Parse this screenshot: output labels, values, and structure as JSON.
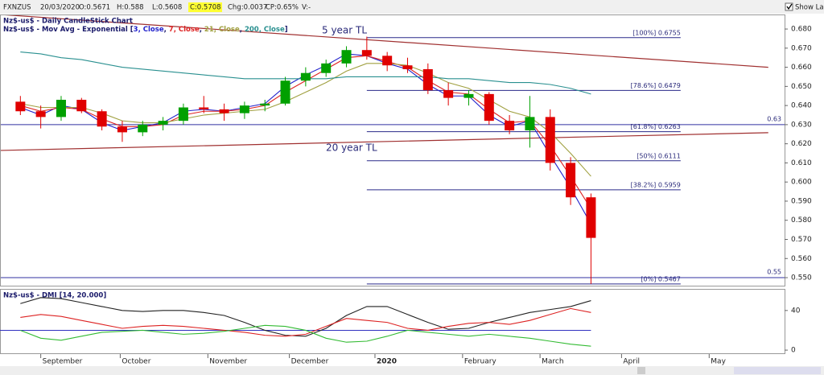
{
  "header": {
    "symbol": "FXNZUS",
    "date": "20/03/2020",
    "open": "O:0.5671",
    "high": "H:0.588",
    "low": "L:0.5608",
    "close": "C:0.5708",
    "change": "Chg:0.0037",
    "change_pct": "CP:0.65%",
    "volume": "V:-",
    "show_last": "Show Last"
  },
  "chart_data": [
    {
      "type": "candlestick",
      "title": "Nz$-us$ - Daily CandleStick Chart",
      "ma_legend": {
        "prefix": "Nz$-us$ - Mov Avg - Exponential [",
        "separator": ", ",
        "suffix": "]"
      },
      "x": [
        -1,
        0,
        1,
        2,
        3,
        4,
        5,
        6,
        7,
        8,
        9,
        10,
        11,
        12,
        13,
        14,
        15,
        16,
        17,
        18,
        19,
        20,
        21,
        22,
        23,
        24,
        25,
        26,
        27
      ],
      "open": [
        0.642,
        0.637,
        0.634,
        0.643,
        0.637,
        0.629,
        0.626,
        0.63,
        0.632,
        0.639,
        0.638,
        0.636,
        0.64,
        0.641,
        0.653,
        0.657,
        0.662,
        0.669,
        0.666,
        0.661,
        0.659,
        0.648,
        0.644,
        0.646,
        0.632,
        0.627,
        0.634,
        0.61,
        0.592
      ],
      "high": [
        0.645,
        0.64,
        0.645,
        0.644,
        0.638,
        0.632,
        0.632,
        0.634,
        0.641,
        0.645,
        0.641,
        0.642,
        0.643,
        0.655,
        0.66,
        0.664,
        0.671,
        0.676,
        0.668,
        0.665,
        0.662,
        0.652,
        0.648,
        0.647,
        0.635,
        0.645,
        0.638,
        0.613,
        0.594
      ],
      "low": [
        0.635,
        0.628,
        0.632,
        0.636,
        0.627,
        0.621,
        0.624,
        0.627,
        0.63,
        0.636,
        0.632,
        0.633,
        0.637,
        0.64,
        0.65,
        0.655,
        0.66,
        0.664,
        0.658,
        0.657,
        0.646,
        0.64,
        0.64,
        0.63,
        0.625,
        0.618,
        0.606,
        0.588,
        0.5467
      ],
      "close": [
        0.637,
        0.634,
        0.643,
        0.637,
        0.629,
        0.626,
        0.63,
        0.632,
        0.639,
        0.638,
        0.636,
        0.64,
        0.641,
        0.653,
        0.657,
        0.662,
        0.669,
        0.666,
        0.661,
        0.659,
        0.648,
        0.644,
        0.646,
        0.632,
        0.627,
        0.634,
        0.61,
        0.592,
        0.5708
      ],
      "up_color": "#00a000",
      "down_color": "#e00000",
      "series": [
        {
          "name": "3, Close",
          "color": "#2222cc",
          "values": [
            0.639,
            0.635,
            0.64,
            0.638,
            0.631,
            0.627,
            0.629,
            0.631,
            0.637,
            0.638,
            0.637,
            0.639,
            0.641,
            0.65,
            0.656,
            0.661,
            0.667,
            0.666,
            0.662,
            0.659,
            0.651,
            0.645,
            0.645,
            0.635,
            0.629,
            0.632,
            0.614,
            0.597,
            0.578
          ]
        },
        {
          "name": "7, Close",
          "color": "#dd2222",
          "values": [
            0.64,
            0.637,
            0.639,
            0.638,
            0.633,
            0.629,
            0.629,
            0.63,
            0.635,
            0.637,
            0.637,
            0.638,
            0.64,
            0.647,
            0.653,
            0.659,
            0.665,
            0.666,
            0.663,
            0.66,
            0.653,
            0.647,
            0.646,
            0.638,
            0.631,
            0.632,
            0.619,
            0.603,
            0.586
          ]
        },
        {
          "name": "21, Close",
          "color": "#a0a040",
          "values": [
            0.641,
            0.639,
            0.639,
            0.639,
            0.636,
            0.632,
            0.631,
            0.631,
            0.633,
            0.635,
            0.636,
            0.637,
            0.638,
            0.642,
            0.647,
            0.652,
            0.658,
            0.662,
            0.662,
            0.661,
            0.657,
            0.652,
            0.649,
            0.643,
            0.637,
            0.634,
            0.626,
            0.615,
            0.603
          ]
        },
        {
          "name": "200, Close",
          "color": "#2a9090",
          "values": [
            0.668,
            0.667,
            0.665,
            0.664,
            0.662,
            0.66,
            0.659,
            0.658,
            0.657,
            0.656,
            0.655,
            0.654,
            0.654,
            0.654,
            0.654,
            0.654,
            0.655,
            0.655,
            0.655,
            0.655,
            0.655,
            0.654,
            0.654,
            0.653,
            0.652,
            0.652,
            0.651,
            0.649,
            0.646
          ]
        }
      ],
      "trendlines": [
        {
          "x": [
            -2,
            35.7
          ],
          "values": [
            0.6876,
            0.66
          ],
          "color": "#a03030",
          "annotation": "5 year TL"
        },
        {
          "x": [
            -2,
            35.7
          ],
          "values": [
            0.6165,
            0.6258
          ],
          "color": "#a03030",
          "annotation": "20 year TL"
        }
      ],
      "levels": [
        {
          "value": 0.63,
          "label": "0.63"
        },
        {
          "value": 0.55,
          "label": "0.55"
        }
      ],
      "level_color": "#3030a0",
      "fib_x": [
        16,
        31.4
      ],
      "fib": [
        {
          "value": 0.6755,
          "label": "[100%] 0.6755"
        },
        {
          "value": 0.6479,
          "label": "[78.6%] 0.6479"
        },
        {
          "value": 0.6263,
          "label": "[61.8%] 0.6263"
        },
        {
          "value": 0.6111,
          "label": "[50%] 0.6111"
        },
        {
          "value": 0.5959,
          "label": "[38.2%] 0.5959"
        },
        {
          "value": 0.5467,
          "label": "[0%] 0.5467"
        }
      ],
      "xlim": [
        -2,
        36.5
      ],
      "xticks": [
        {
          "value": 0,
          "label": "September"
        },
        {
          "value": 3.9,
          "label": "October"
        },
        {
          "value": 8.2,
          "label": "November"
        },
        {
          "value": 12.2,
          "label": "December"
        },
        {
          "value": 16.4,
          "label": "2020"
        },
        {
          "value": 20.7,
          "label": "February"
        },
        {
          "value": 24.5,
          "label": "March"
        },
        {
          "value": 28.5,
          "label": "April"
        },
        {
          "value": 32.8,
          "label": "May"
        }
      ],
      "ylim": [
        0.5458,
        0.6876
      ],
      "yticks": [
        {
          "value": 0.55,
          "label": "0.550"
        },
        {
          "value": 0.56,
          "label": "0.560"
        },
        {
          "value": 0.57,
          "label": "0.570"
        },
        {
          "value": 0.58,
          "label": "0.580"
        },
        {
          "value": 0.59,
          "label": "0.590"
        },
        {
          "value": 0.6,
          "label": "0.600"
        },
        {
          "value": 0.61,
          "label": "0.610"
        },
        {
          "value": 0.62,
          "label": "0.620"
        },
        {
          "value": 0.63,
          "label": "0.630"
        },
        {
          "value": 0.64,
          "label": "0.640"
        },
        {
          "value": 0.65,
          "label": "0.650"
        },
        {
          "value": 0.66,
          "label": "0.660"
        },
        {
          "value": 0.67,
          "label": "0.670"
        },
        {
          "value": 0.68,
          "label": "0.680"
        }
      ]
    },
    {
      "type": "line",
      "title": "Nz$-us$ - DMI [14, 20.000]",
      "x": [
        -1,
        0,
        1,
        2,
        3,
        4,
        5,
        6,
        7,
        8,
        9,
        10,
        11,
        12,
        13,
        14,
        15,
        16,
        17,
        18,
        19,
        20,
        21,
        22,
        23,
        24,
        25,
        26,
        27
      ],
      "series": [
        {
          "color": "#222222",
          "values": [
            47,
            53,
            52,
            48,
            44,
            40,
            39,
            40,
            40,
            38,
            35,
            28,
            20,
            15,
            14,
            22,
            35,
            44,
            44,
            36,
            28,
            21,
            22,
            28,
            33,
            38,
            41,
            44,
            50
          ]
        },
        {
          "color": "#dd2222",
          "values": [
            33,
            36,
            34,
            30,
            26,
            22,
            24,
            25,
            24,
            22,
            20,
            18,
            15,
            14,
            16,
            24,
            32,
            30,
            28,
            22,
            20,
            24,
            27,
            28,
            26,
            30,
            36,
            42,
            38
          ]
        },
        {
          "color": "#33bb33",
          "values": [
            20,
            12,
            10,
            14,
            18,
            19,
            20,
            18,
            16,
            17,
            19,
            22,
            25,
            24,
            20,
            12,
            8,
            9,
            14,
            20,
            18,
            16,
            14,
            16,
            14,
            12,
            9,
            6,
            4
          ]
        }
      ],
      "threshold": 20,
      "threshold_color": "#3030c0",
      "xlim": [
        -2,
        36.5
      ],
      "ylim": [
        -4,
        61
      ],
      "yticks": [
        0,
        40
      ]
    }
  ]
}
